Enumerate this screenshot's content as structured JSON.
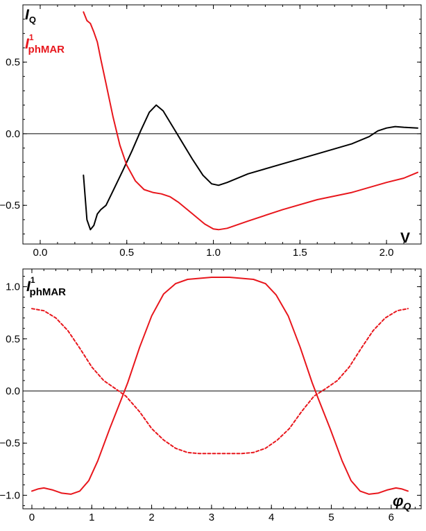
{
  "chart_data": [
    {
      "type": "line",
      "xlim": [
        -0.1,
        2.2
      ],
      "ylim": [
        -0.77,
        0.9
      ],
      "x_ticks": [
        0.0,
        0.5,
        1.0,
        1.5,
        2.0
      ],
      "x_tick_labels": [
        "0.0",
        "0.5",
        "1.0",
        "1.5",
        "2.0"
      ],
      "y_ticks": [
        0.5,
        0.0,
        -0.5
      ],
      "y_tick_labels": [
        "0.5",
        "0.0",
        "−0.5"
      ],
      "xlabel": "V",
      "ylabel_parts": [
        {
          "base": "I",
          "sub": "Q",
          "sup": "",
          "color": "#000000"
        },
        {
          "base": "I",
          "sub": "phMAR",
          "sup": "1",
          "color": "#e8161c"
        }
      ],
      "grid": false,
      "series": [
        {
          "color": "#000000",
          "dash": "solid",
          "points": [
            [
              0.25,
              -0.29
            ],
            [
              0.27,
              -0.6
            ],
            [
              0.29,
              -0.67
            ],
            [
              0.31,
              -0.64
            ],
            [
              0.33,
              -0.56
            ],
            [
              0.35,
              -0.53
            ],
            [
              0.38,
              -0.5
            ],
            [
              0.42,
              -0.4
            ],
            [
              0.48,
              -0.25
            ],
            [
              0.53,
              -0.12
            ],
            [
              0.58,
              0.02
            ],
            [
              0.63,
              0.15
            ],
            [
              0.67,
              0.2
            ],
            [
              0.71,
              0.16
            ],
            [
              0.76,
              0.06
            ],
            [
              0.82,
              -0.06
            ],
            [
              0.88,
              -0.18
            ],
            [
              0.94,
              -0.29
            ],
            [
              0.99,
              -0.35
            ],
            [
              1.03,
              -0.36
            ],
            [
              1.08,
              -0.34
            ],
            [
              1.2,
              -0.28
            ],
            [
              1.4,
              -0.21
            ],
            [
              1.6,
              -0.14
            ],
            [
              1.8,
              -0.07
            ],
            [
              1.9,
              -0.02
            ],
            [
              1.95,
              0.02
            ],
            [
              2.0,
              0.04
            ],
            [
              2.05,
              0.05
            ],
            [
              2.1,
              0.045
            ],
            [
              2.18,
              0.04
            ]
          ]
        },
        {
          "color": "#e8161c",
          "dash": "solid",
          "points": [
            [
              0.25,
              0.85
            ],
            [
              0.27,
              0.79
            ],
            [
              0.29,
              0.77
            ],
            [
              0.31,
              0.71
            ],
            [
              0.33,
              0.64
            ],
            [
              0.35,
              0.52
            ],
            [
              0.38,
              0.35
            ],
            [
              0.42,
              0.12
            ],
            [
              0.46,
              -0.08
            ],
            [
              0.5,
              -0.22
            ],
            [
              0.55,
              -0.33
            ],
            [
              0.6,
              -0.39
            ],
            [
              0.65,
              -0.41
            ],
            [
              0.7,
              -0.42
            ],
            [
              0.75,
              -0.44
            ],
            [
              0.8,
              -0.48
            ],
            [
              0.88,
              -0.56
            ],
            [
              0.95,
              -0.63
            ],
            [
              1.0,
              -0.665
            ],
            [
              1.03,
              -0.67
            ],
            [
              1.08,
              -0.66
            ],
            [
              1.2,
              -0.61
            ],
            [
              1.4,
              -0.53
            ],
            [
              1.6,
              -0.46
            ],
            [
              1.8,
              -0.41
            ],
            [
              2.0,
              -0.34
            ],
            [
              2.1,
              -0.31
            ],
            [
              2.18,
              -0.27
            ]
          ]
        }
      ]
    },
    {
      "type": "line",
      "xlim": [
        -0.15,
        6.5
      ],
      "ylim": [
        -1.13,
        1.17
      ],
      "x_ticks": [
        0,
        1,
        2,
        3,
        4,
        5,
        6
      ],
      "x_tick_labels": [
        "0",
        "1",
        "2",
        "3",
        "4",
        "5",
        "6"
      ],
      "y_ticks": [
        1.0,
        0.5,
        0.0,
        -0.5,
        -1.0
      ],
      "y_tick_labels": [
        "1.0",
        "0.5",
        "0.0",
        "−0.5",
        "−1.0"
      ],
      "xlabel": "φ",
      "xlabel_sub": "Q",
      "ylabel_parts": [
        {
          "base": "I",
          "sub": "phMAR",
          "sup": "1",
          "color": "#000000"
        }
      ],
      "grid": false,
      "series": [
        {
          "color": "#e8161c",
          "dash": "solid",
          "points": [
            [
              0.0,
              -0.96
            ],
            [
              0.1,
              -0.94
            ],
            [
              0.2,
              -0.93
            ],
            [
              0.35,
              -0.95
            ],
            [
              0.5,
              -0.98
            ],
            [
              0.65,
              -0.99
            ],
            [
              0.8,
              -0.96
            ],
            [
              0.95,
              -0.86
            ],
            [
              1.1,
              -0.67
            ],
            [
              1.3,
              -0.36
            ],
            [
              1.5,
              -0.07
            ],
            [
              1.6,
              0.08
            ],
            [
              1.8,
              0.42
            ],
            [
              2.0,
              0.72
            ],
            [
              2.2,
              0.93
            ],
            [
              2.4,
              1.03
            ],
            [
              2.6,
              1.07
            ],
            [
              2.8,
              1.08
            ],
            [
              3.0,
              1.09
            ],
            [
              3.14,
              1.09
            ],
            [
              3.3,
              1.09
            ],
            [
              3.5,
              1.08
            ],
            [
              3.7,
              1.07
            ],
            [
              3.9,
              1.03
            ],
            [
              4.08,
              0.92
            ],
            [
              4.28,
              0.72
            ],
            [
              4.48,
              0.42
            ],
            [
              4.68,
              0.08
            ],
            [
              4.78,
              -0.07
            ],
            [
              4.98,
              -0.36
            ],
            [
              5.18,
              -0.67
            ],
            [
              5.33,
              -0.86
            ],
            [
              5.48,
              -0.96
            ],
            [
              5.63,
              -0.99
            ],
            [
              5.78,
              -0.98
            ],
            [
              5.93,
              -0.95
            ],
            [
              6.08,
              -0.93
            ],
            [
              6.18,
              -0.94
            ],
            [
              6.28,
              -0.96
            ]
          ]
        },
        {
          "color": "#e8161c",
          "dash": "dashed",
          "points": [
            [
              0.0,
              0.79
            ],
            [
              0.2,
              0.77
            ],
            [
              0.4,
              0.7
            ],
            [
              0.6,
              0.58
            ],
            [
              0.8,
              0.41
            ],
            [
              1.0,
              0.23
            ],
            [
              1.2,
              0.1
            ],
            [
              1.4,
              0.02
            ],
            [
              1.57,
              -0.05
            ],
            [
              1.8,
              -0.2
            ],
            [
              2.0,
              -0.36
            ],
            [
              2.2,
              -0.47
            ],
            [
              2.4,
              -0.55
            ],
            [
              2.6,
              -0.59
            ],
            [
              2.8,
              -0.6
            ],
            [
              3.14,
              -0.6
            ],
            [
              3.5,
              -0.6
            ],
            [
              3.7,
              -0.59
            ],
            [
              3.9,
              -0.55
            ],
            [
              4.1,
              -0.47
            ],
            [
              4.3,
              -0.36
            ],
            [
              4.5,
              -0.2
            ],
            [
              4.71,
              -0.05
            ],
            [
              4.9,
              0.02
            ],
            [
              5.1,
              0.1
            ],
            [
              5.3,
              0.23
            ],
            [
              5.5,
              0.41
            ],
            [
              5.7,
              0.58
            ],
            [
              5.9,
              0.7
            ],
            [
              6.1,
              0.77
            ],
            [
              6.28,
              0.79
            ]
          ]
        }
      ]
    }
  ]
}
